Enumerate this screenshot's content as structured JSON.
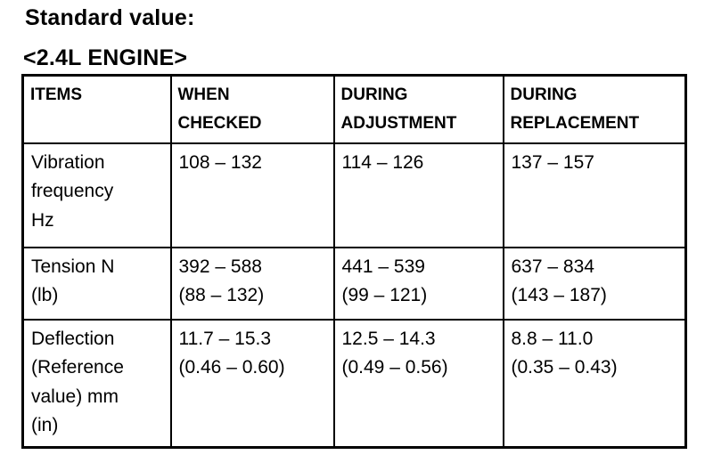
{
  "page": {
    "title": "Standard value:",
    "subtitle": "<2.4L ENGINE>"
  },
  "table": {
    "headers": [
      "ITEMS",
      "WHEN\nCHECKED",
      "DURING\nADJUSTMENT",
      "DURING\nREPLACEMENT"
    ],
    "rows": [
      {
        "item": "Vibration\nfrequency\nHz",
        "when_checked": "108 – 132",
        "during_adjustment": "114 – 126",
        "during_replacement": "137 – 157"
      },
      {
        "item": "Tension N\n(lb)",
        "when_checked": "392 – 588\n(88 – 132)",
        "during_adjustment": "441 – 539\n(99 – 121)",
        "during_replacement": "637 – 834\n(143 – 187)"
      },
      {
        "item": "Deflection\n(Reference\nvalue) mm\n(in)",
        "when_checked": "11.7 – 15.3\n(0.46 – 0.60)",
        "during_adjustment": "12.5 – 14.3\n(0.49 – 0.56)",
        "during_replacement": "8.8 – 11.0\n(0.35 – 0.43)"
      }
    ]
  }
}
